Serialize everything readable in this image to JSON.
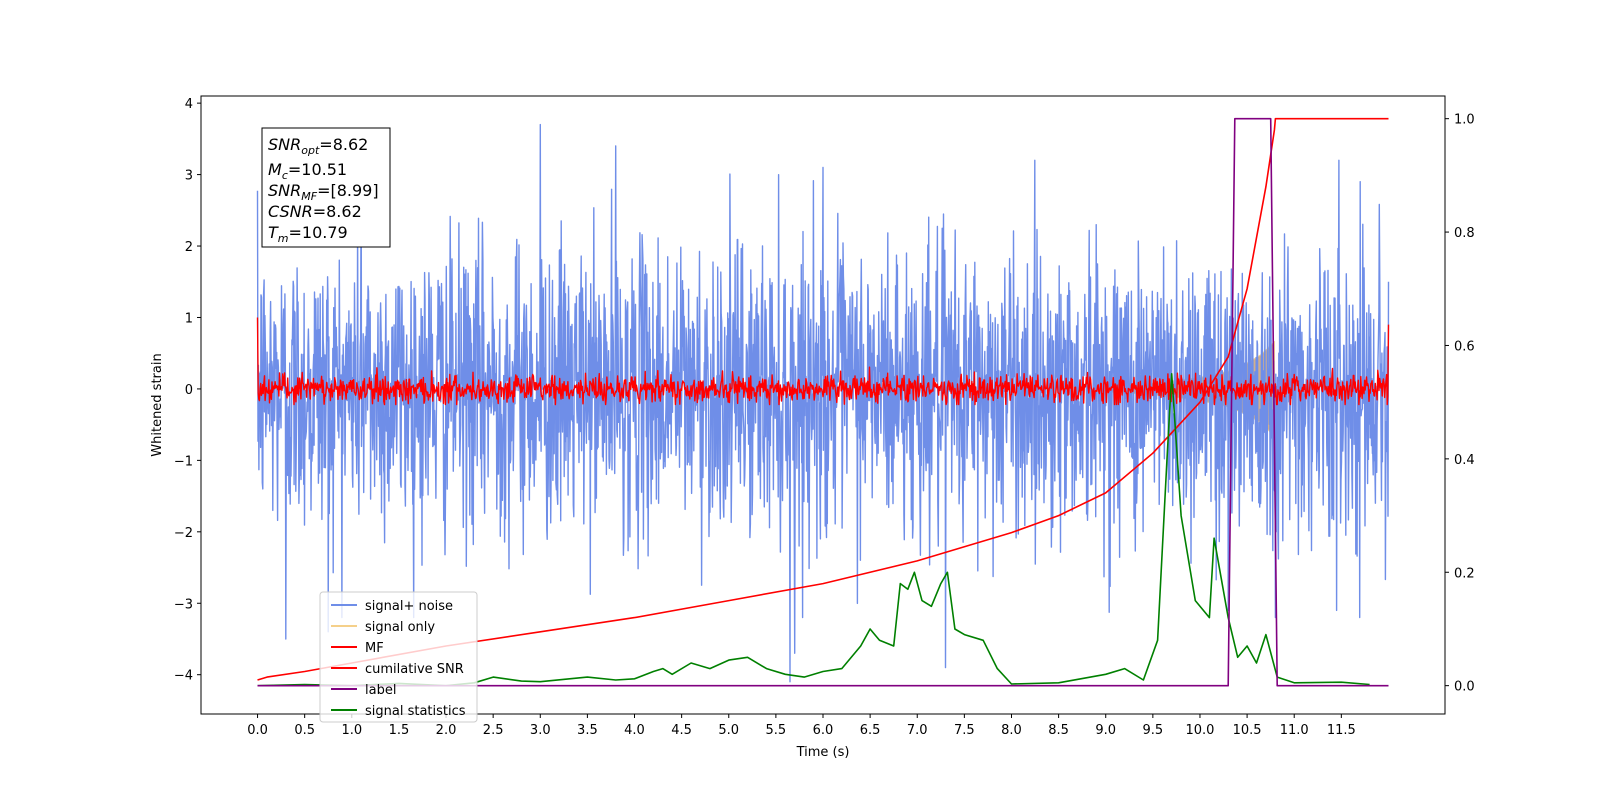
{
  "chart_data": {
    "type": "line",
    "xlabel": "Time (s)",
    "ylabel": "Whitened strain",
    "xlim": [
      -0.6,
      12.6
    ],
    "ylim": [
      -4.55,
      4.1
    ],
    "ylim_right": [
      -0.05,
      1.04
    ],
    "x_ticks": [
      "0.0",
      "0.5",
      "1.0",
      "1.5",
      "2.0",
      "2.5",
      "3.0",
      "3.5",
      "4.0",
      "4.5",
      "5.0",
      "5.5",
      "6.0",
      "6.5",
      "7.0",
      "7.5",
      "8.0",
      "8.5",
      "9.0",
      "9.5",
      "10.0",
      "10.5",
      "11.0",
      "11.5"
    ],
    "y_ticks_left": [
      "4",
      "3",
      "2",
      "1",
      "0",
      "−1",
      "−2",
      "−3",
      "−4"
    ],
    "y_ticks_right": [
      "1.0",
      "0.8",
      "0.6",
      "0.4",
      "0.2",
      "0.0"
    ],
    "info_box": {
      "snr_opt": "=8.62",
      "mc": "=10.51",
      "snr_mf": "=[8.99]",
      "csnr": "=8.62",
      "tm": "=10.79"
    },
    "legend": {
      "placement": "lower-left",
      "entries": [
        {
          "label": "signal+ noise",
          "color": "#6f8ee8"
        },
        {
          "label": "signal only",
          "color": "#f5d08a"
        },
        {
          "label": "MF",
          "color": "#ff0000"
        },
        {
          "label": "cumilative SNR",
          "color": "#ff0000"
        },
        {
          "label": "label",
          "color": "#800080"
        },
        {
          "label": "signal statistics",
          "color": "#008000"
        }
      ]
    },
    "series": [
      {
        "name": "signal+ noise",
        "axis": "left",
        "color": "#6f8ee8",
        "x_start": 0.0,
        "x_end": 12.0,
        "noise_sigma": 1.0,
        "spikes": [
          {
            "x": 0.3,
            "y": -3.5
          },
          {
            "x": 0.75,
            "y": -3.4
          },
          {
            "x": 1.1,
            "y": 3.2
          },
          {
            "x": 3.0,
            "y": 3.7
          },
          {
            "x": 3.8,
            "y": 3.4
          },
          {
            "x": 5.65,
            "y": -4.1
          },
          {
            "x": 5.7,
            "y": -3.7
          },
          {
            "x": 6.0,
            "y": 3.1
          },
          {
            "x": 7.3,
            "y": -3.9
          },
          {
            "x": 10.3,
            "y": -3.1
          },
          {
            "x": 10.8,
            "y": -3.2
          },
          {
            "x": 11.45,
            "y": -3.1
          },
          {
            "x": 11.7,
            "y": 2.9
          }
        ]
      },
      {
        "name": "signal only",
        "axis": "left",
        "color": "#f5d08a",
        "envelope": [
          [
            9.0,
            0.04
          ],
          [
            9.5,
            0.08
          ],
          [
            10.0,
            0.16
          ],
          [
            10.3,
            0.25
          ],
          [
            10.5,
            0.36
          ],
          [
            10.65,
            0.48
          ],
          [
            10.79,
            0.66
          ]
        ]
      },
      {
        "name": "MF",
        "axis": "left",
        "color": "#ff0000",
        "noise_sigma": 0.1,
        "edge_values": [
          {
            "x": 0.0,
            "y": 1.0
          },
          {
            "x": 12.0,
            "y": 0.9
          }
        ]
      },
      {
        "name": "cumilative SNR",
        "axis": "right",
        "color": "#ff0000",
        "x": [
          0.0,
          0.1,
          0.5,
          1.0,
          2.0,
          3.0,
          4.0,
          5.0,
          6.0,
          7.0,
          8.0,
          8.5,
          9.0,
          9.5,
          10.0,
          10.3,
          10.5,
          10.7,
          10.79,
          10.8,
          11.0,
          12.0
        ],
        "values": [
          0.01,
          0.015,
          0.025,
          0.04,
          0.07,
          0.095,
          0.12,
          0.15,
          0.18,
          0.22,
          0.27,
          0.3,
          0.34,
          0.41,
          0.5,
          0.58,
          0.7,
          0.88,
          0.98,
          1.0,
          1.0,
          1.0
        ]
      },
      {
        "name": "label",
        "axis": "right",
        "color": "#800080",
        "x": [
          0.0,
          10.3,
          10.37,
          10.75,
          10.82,
          12.0
        ],
        "values": [
          0.0,
          0.0,
          1.0,
          1.0,
          0.0,
          0.0
        ]
      },
      {
        "name": "signal statistics",
        "axis": "right",
        "color": "#008000",
        "x": [
          0.0,
          0.5,
          1.0,
          1.5,
          2.0,
          2.3,
          2.5,
          2.8,
          3.0,
          3.5,
          3.8,
          4.0,
          4.2,
          4.3,
          4.4,
          4.6,
          4.8,
          5.0,
          5.2,
          5.4,
          5.6,
          5.8,
          6.0,
          6.2,
          6.4,
          6.5,
          6.6,
          6.75,
          6.82,
          6.9,
          6.97,
          7.05,
          7.15,
          7.25,
          7.32,
          7.4,
          7.5,
          7.7,
          7.85,
          8.0,
          8.5,
          9.0,
          9.2,
          9.4,
          9.55,
          9.65,
          9.7,
          9.8,
          9.95,
          10.1,
          10.15,
          10.3,
          10.4,
          10.5,
          10.6,
          10.7,
          10.82,
          11.0,
          11.5,
          11.8
        ],
        "values": [
          0.0,
          0.002,
          0.0,
          0.004,
          0.0,
          0.005,
          0.015,
          0.008,
          0.007,
          0.015,
          0.01,
          0.012,
          0.025,
          0.03,
          0.02,
          0.04,
          0.03,
          0.045,
          0.05,
          0.03,
          0.02,
          0.015,
          0.025,
          0.03,
          0.07,
          0.1,
          0.08,
          0.07,
          0.18,
          0.17,
          0.2,
          0.15,
          0.14,
          0.18,
          0.2,
          0.1,
          0.09,
          0.08,
          0.03,
          0.003,
          0.005,
          0.02,
          0.03,
          0.01,
          0.08,
          0.4,
          0.55,
          0.3,
          0.15,
          0.12,
          0.26,
          0.12,
          0.05,
          0.07,
          0.04,
          0.09,
          0.015,
          0.005,
          0.006,
          0.002
        ]
      }
    ]
  }
}
